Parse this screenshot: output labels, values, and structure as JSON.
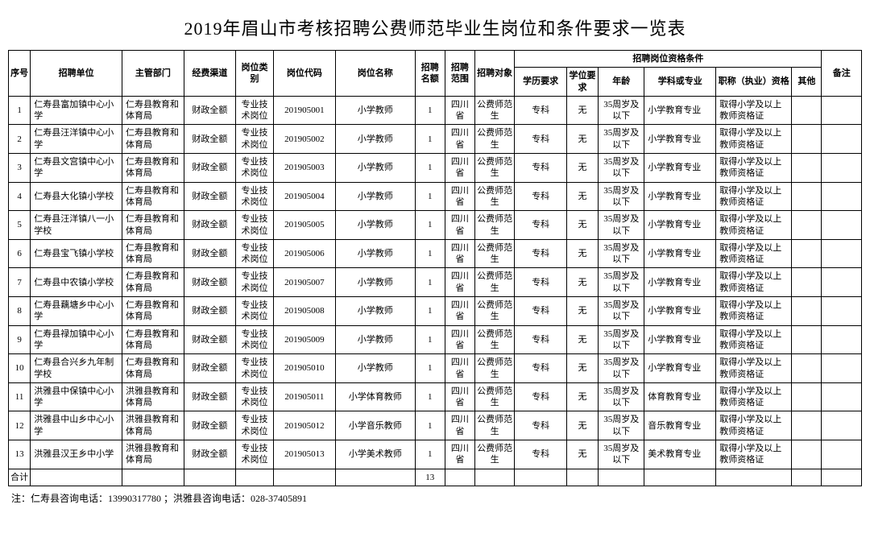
{
  "title": "2019年眉山市考核招聘公费师范毕业生岗位和条件要求一览表",
  "columns": {
    "seq": "序号",
    "unit": "招聘单位",
    "dept": "主管部门",
    "fund": "经费渠道",
    "ptype": "岗位类别",
    "pcode": "岗位代码",
    "pname": "岗位名称",
    "quota": "招聘名额",
    "scope": "招聘范围",
    "target": "招聘对象",
    "qual_group": "招聘岗位资格条件",
    "edu": "学历要求",
    "deg": "学位要求",
    "age": "年龄",
    "major": "学科或专业",
    "cert": "职称（执业）资格",
    "other": "其他",
    "remark": "备注"
  },
  "total_label": "合计",
  "total_quota": "13",
  "footnote": "注：仁寿县咨询电话：13990317780 ；洪雅县咨询电话：028-37405891",
  "rows": [
    {
      "seq": "1",
      "unit": "仁寿县富加镇中心小学",
      "dept": "仁寿县教育和体育局",
      "fund": "财政全额",
      "ptype": "专业技术岗位",
      "pcode": "201905001",
      "pname": "小学教师",
      "quota": "1",
      "scope": "四川省",
      "target": "公费师范生",
      "edu": "专科",
      "deg": "无",
      "age": "35周岁及以下",
      "major": "小学教育专业",
      "cert": "取得小学及以上教师资格证",
      "other": "",
      "remark": ""
    },
    {
      "seq": "2",
      "unit": "仁寿县汪洋镇中心小学",
      "dept": "仁寿县教育和体育局",
      "fund": "财政全额",
      "ptype": "专业技术岗位",
      "pcode": "201905002",
      "pname": "小学教师",
      "quota": "1",
      "scope": "四川省",
      "target": "公费师范生",
      "edu": "专科",
      "deg": "无",
      "age": "35周岁及以下",
      "major": "小学教育专业",
      "cert": "取得小学及以上教师资格证",
      "other": "",
      "remark": ""
    },
    {
      "seq": "3",
      "unit": "仁寿县文宫镇中心小学",
      "dept": "仁寿县教育和体育局",
      "fund": "财政全额",
      "ptype": "专业技术岗位",
      "pcode": "201905003",
      "pname": "小学教师",
      "quota": "1",
      "scope": "四川省",
      "target": "公费师范生",
      "edu": "专科",
      "deg": "无",
      "age": "35周岁及以下",
      "major": "小学教育专业",
      "cert": "取得小学及以上教师资格证",
      "other": "",
      "remark": ""
    },
    {
      "seq": "4",
      "unit": "仁寿县大化镇小学校",
      "dept": "仁寿县教育和体育局",
      "fund": "财政全额",
      "ptype": "专业技术岗位",
      "pcode": "201905004",
      "pname": "小学教师",
      "quota": "1",
      "scope": "四川省",
      "target": "公费师范生",
      "edu": "专科",
      "deg": "无",
      "age": "35周岁及以下",
      "major": "小学教育专业",
      "cert": "取得小学及以上教师资格证",
      "other": "",
      "remark": ""
    },
    {
      "seq": "5",
      "unit": "仁寿县汪洋镇八一小学校",
      "dept": "仁寿县教育和体育局",
      "fund": "财政全额",
      "ptype": "专业技术岗位",
      "pcode": "201905005",
      "pname": "小学教师",
      "quota": "1",
      "scope": "四川省",
      "target": "公费师范生",
      "edu": "专科",
      "deg": "无",
      "age": "35周岁及以下",
      "major": "小学教育专业",
      "cert": "取得小学及以上教师资格证",
      "other": "",
      "remark": ""
    },
    {
      "seq": "6",
      "unit": "仁寿县宝飞镇小学校",
      "dept": "仁寿县教育和体育局",
      "fund": "财政全额",
      "ptype": "专业技术岗位",
      "pcode": "201905006",
      "pname": "小学教师",
      "quota": "1",
      "scope": "四川省",
      "target": "公费师范生",
      "edu": "专科",
      "deg": "无",
      "age": "35周岁及以下",
      "major": "小学教育专业",
      "cert": "取得小学及以上教师资格证",
      "other": "",
      "remark": ""
    },
    {
      "seq": "7",
      "unit": "仁寿县中农镇小学校",
      "dept": "仁寿县教育和体育局",
      "fund": "财政全额",
      "ptype": "专业技术岗位",
      "pcode": "201905007",
      "pname": "小学教师",
      "quota": "1",
      "scope": "四川省",
      "target": "公费师范生",
      "edu": "专科",
      "deg": "无",
      "age": "35周岁及以下",
      "major": "小学教育专业",
      "cert": "取得小学及以上教师资格证",
      "other": "",
      "remark": ""
    },
    {
      "seq": "8",
      "unit": "仁寿县藕塘乡中心小学",
      "dept": "仁寿县教育和体育局",
      "fund": "财政全额",
      "ptype": "专业技术岗位",
      "pcode": "201905008",
      "pname": "小学教师",
      "quota": "1",
      "scope": "四川省",
      "target": "公费师范生",
      "edu": "专科",
      "deg": "无",
      "age": "35周岁及以下",
      "major": "小学教育专业",
      "cert": "取得小学及以上教师资格证",
      "other": "",
      "remark": ""
    },
    {
      "seq": "9",
      "unit": "仁寿县禄加镇中心小学",
      "dept": "仁寿县教育和体育局",
      "fund": "财政全额",
      "ptype": "专业技术岗位",
      "pcode": "201905009",
      "pname": "小学教师",
      "quota": "1",
      "scope": "四川省",
      "target": "公费师范生",
      "edu": "专科",
      "deg": "无",
      "age": "35周岁及以下",
      "major": "小学教育专业",
      "cert": "取得小学及以上教师资格证",
      "other": "",
      "remark": ""
    },
    {
      "seq": "10",
      "unit": "仁寿县合兴乡九年制学校",
      "dept": "仁寿县教育和体育局",
      "fund": "财政全额",
      "ptype": "专业技术岗位",
      "pcode": "201905010",
      "pname": "小学教师",
      "quota": "1",
      "scope": "四川省",
      "target": "公费师范生",
      "edu": "专科",
      "deg": "无",
      "age": "35周岁及以下",
      "major": "小学教育专业",
      "cert": "取得小学及以上教师资格证",
      "other": "",
      "remark": ""
    },
    {
      "seq": "11",
      "unit": "洪雅县中保镇中心小学",
      "dept": "洪雅县教育和体育局",
      "fund": "财政全额",
      "ptype": "专业技术岗位",
      "pcode": "201905011",
      "pname": "小学体育教师",
      "quota": "1",
      "scope": "四川省",
      "target": "公费师范生",
      "edu": "专科",
      "deg": "无",
      "age": "35周岁及以下",
      "major": "体育教育专业",
      "cert": "取得小学及以上教师资格证",
      "other": "",
      "remark": ""
    },
    {
      "seq": "12",
      "unit": "洪雅县中山乡中心小学",
      "dept": "洪雅县教育和体育局",
      "fund": "财政全额",
      "ptype": "专业技术岗位",
      "pcode": "201905012",
      "pname": "小学音乐教师",
      "quota": "1",
      "scope": "四川省",
      "target": "公费师范生",
      "edu": "专科",
      "deg": "无",
      "age": "35周岁及以下",
      "major": "音乐教育专业",
      "cert": "取得小学及以上教师资格证",
      "other": "",
      "remark": ""
    },
    {
      "seq": "13",
      "unit": "洪雅县汉王乡中小学",
      "dept": "洪雅县教育和体育局",
      "fund": "财政全额",
      "ptype": "专业技术岗位",
      "pcode": "201905013",
      "pname": "小学美术教师",
      "quota": "1",
      "scope": "四川省",
      "target": "公费师范生",
      "edu": "专科",
      "deg": "无",
      "age": "35周岁及以下",
      "major": "美术教育专业",
      "cert": "取得小学及以上教师资格证",
      "other": "",
      "remark": ""
    }
  ]
}
